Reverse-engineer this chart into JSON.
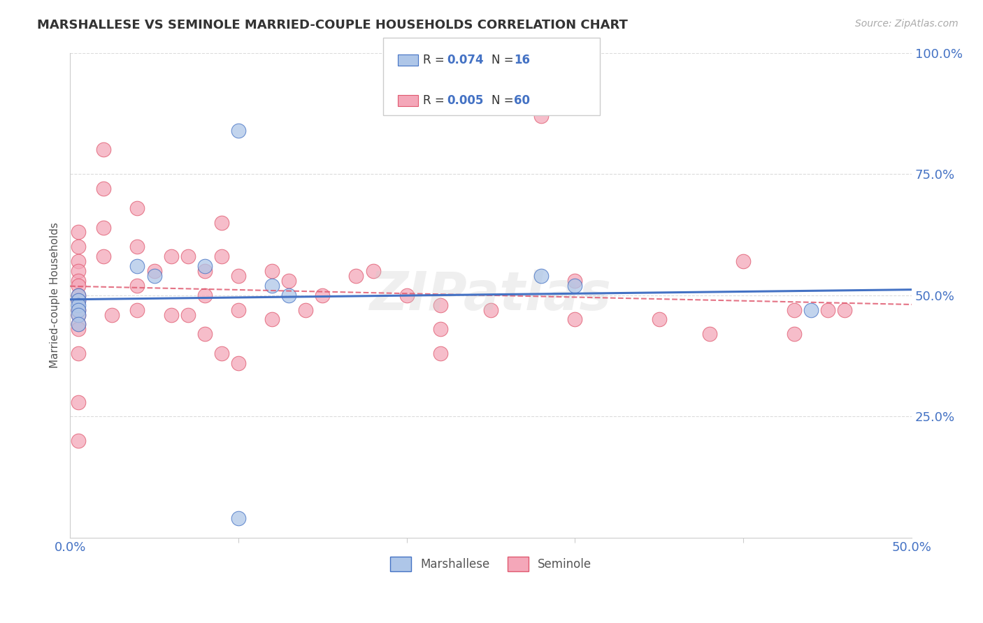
{
  "title": "MARSHALLESE VS SEMINOLE MARRIED-COUPLE HOUSEHOLDS CORRELATION CHART",
  "source": "Source: ZipAtlas.com",
  "ylabel": "Married-couple Households",
  "xlim": [
    0.0,
    0.5
  ],
  "ylim": [
    0.0,
    1.0
  ],
  "xtick_labels": [
    "0.0%",
    "50.0%"
  ],
  "ytick_labels": [
    "25.0%",
    "50.0%",
    "75.0%",
    "100.0%"
  ],
  "ytick_values": [
    0.25,
    0.5,
    0.75,
    1.0
  ],
  "xtick_minor_values": [
    0.1,
    0.2,
    0.3,
    0.4
  ],
  "marshallese_color": "#aec6e8",
  "seminole_color": "#f4a7b9",
  "marshallese_line_color": "#4472c4",
  "seminole_line_color": "#e05a70",
  "watermark": "ZIPatlas",
  "marshallese_x": [
    0.005,
    0.005,
    0.005,
    0.005,
    0.005,
    0.005,
    0.04,
    0.05,
    0.08,
    0.1,
    0.12,
    0.13,
    0.28,
    0.3,
    0.44,
    0.1
  ],
  "marshallese_y": [
    0.5,
    0.49,
    0.48,
    0.47,
    0.46,
    0.44,
    0.56,
    0.54,
    0.56,
    0.84,
    0.52,
    0.5,
    0.54,
    0.52,
    0.47,
    0.04
  ],
  "seminole_x": [
    0.005,
    0.005,
    0.005,
    0.005,
    0.005,
    0.005,
    0.005,
    0.005,
    0.005,
    0.005,
    0.005,
    0.005,
    0.005,
    0.005,
    0.005,
    0.02,
    0.02,
    0.02,
    0.02,
    0.025,
    0.04,
    0.04,
    0.04,
    0.04,
    0.05,
    0.06,
    0.06,
    0.07,
    0.07,
    0.08,
    0.08,
    0.08,
    0.09,
    0.09,
    0.09,
    0.1,
    0.1,
    0.1,
    0.12,
    0.12,
    0.13,
    0.14,
    0.15,
    0.17,
    0.18,
    0.2,
    0.22,
    0.22,
    0.22,
    0.25,
    0.28,
    0.3,
    0.3,
    0.35,
    0.38,
    0.4,
    0.43,
    0.43,
    0.45,
    0.46
  ],
  "seminole_y": [
    0.63,
    0.6,
    0.57,
    0.55,
    0.53,
    0.52,
    0.5,
    0.49,
    0.47,
    0.46,
    0.44,
    0.43,
    0.38,
    0.28,
    0.2,
    0.8,
    0.72,
    0.64,
    0.58,
    0.46,
    0.68,
    0.6,
    0.52,
    0.47,
    0.55,
    0.58,
    0.46,
    0.58,
    0.46,
    0.55,
    0.5,
    0.42,
    0.65,
    0.58,
    0.38,
    0.54,
    0.47,
    0.36,
    0.55,
    0.45,
    0.53,
    0.47,
    0.5,
    0.54,
    0.55,
    0.5,
    0.48,
    0.43,
    0.38,
    0.47,
    0.87,
    0.53,
    0.45,
    0.45,
    0.42,
    0.57,
    0.47,
    0.42,
    0.47,
    0.47
  ],
  "background_color": "#ffffff",
  "grid_color": "#cccccc",
  "title_color": "#333333",
  "source_color": "#aaaaaa",
  "tick_color": "#4472c4",
  "ylabel_color": "#555555"
}
